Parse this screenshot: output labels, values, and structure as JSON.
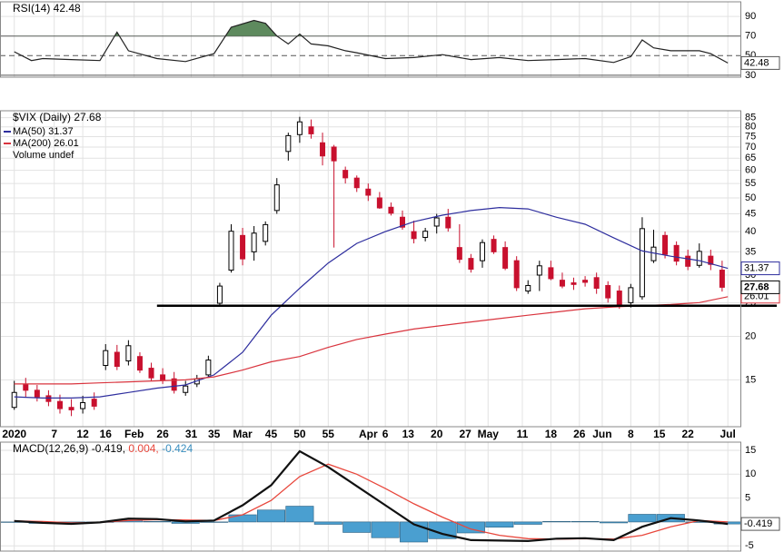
{
  "chart_data": [
    {
      "type": "line",
      "panel": "rsi",
      "title": "RSI(14) 42.48",
      "x": [
        0,
        3,
        5,
        10,
        15,
        18,
        20,
        25,
        30,
        35,
        38,
        42,
        44,
        46,
        48,
        50,
        52,
        55,
        58,
        60,
        65,
        70,
        75,
        80,
        85,
        90,
        95,
        100,
        105,
        108,
        110,
        112,
        115,
        120,
        122,
        125
      ],
      "series": [
        {
          "name": "RSI(14)",
          "color": "#222222",
          "values": [
            54,
            45,
            47,
            46,
            45,
            74,
            55,
            47,
            44,
            52,
            79,
            86,
            83,
            70,
            62,
            72,
            62,
            60,
            55,
            53,
            47,
            48,
            51,
            46,
            48,
            45,
            46,
            47,
            43,
            49,
            66,
            58,
            55,
            55,
            52,
            42.48
          ]
        }
      ],
      "ylim": [
        28,
        105
      ],
      "yticks": [
        30,
        50,
        70,
        90
      ],
      "last_value": 42.48,
      "fill_above": 70,
      "fill_color": "#5e8a5e"
    },
    {
      "type": "candlestick",
      "panel": "price",
      "title": "$VIX (Daily) 27.68",
      "legend_extra": "Volume undef",
      "x": [
        0,
        2,
        4,
        6,
        8,
        10,
        12,
        14,
        16,
        18,
        20,
        22,
        24,
        26,
        28,
        30,
        32,
        34,
        36,
        38,
        40,
        42,
        44,
        46,
        48,
        50,
        52,
        54,
        56,
        58,
        60,
        62,
        64,
        66,
        68,
        70,
        72,
        74,
        76,
        78,
        80,
        82,
        84,
        86,
        88,
        90,
        92,
        94,
        96,
        98,
        100,
        102,
        104,
        106,
        108,
        110,
        112,
        114,
        116,
        118,
        120,
        122,
        124
      ],
      "open": [
        12.5,
        14.5,
        14.0,
        13.5,
        13.0,
        12.5,
        12.4,
        13.2,
        16.5,
        18.0,
        17.0,
        17.5,
        16.2,
        15.5,
        15.1,
        13.8,
        14.6,
        15.5,
        24.9,
        31.0,
        39.0,
        35.0,
        37.5,
        46.0,
        68.0,
        76.0,
        80.0,
        72.0,
        70.0,
        60.0,
        57.0,
        53.0,
        50.0,
        47.0,
        44.0,
        40.0,
        38.5,
        41.5,
        44.0,
        36.0,
        33.5,
        33.0,
        38.0,
        36.0,
        33.0,
        27.0,
        30.0,
        31.5,
        29.0,
        28.5,
        29.0,
        29.5,
        28.0,
        27.0,
        25.0,
        26.0,
        33.0,
        39.0,
        36.5,
        34.0,
        32.0,
        34.0,
        31.0
      ],
      "high": [
        14.9,
        15.2,
        14.5,
        14.0,
        13.6,
        13.2,
        13.5,
        13.8,
        19.0,
        18.9,
        19.5,
        18.0,
        16.8,
        16.2,
        15.8,
        14.9,
        15.5,
        17.6,
        28.5,
        42.0,
        41.0,
        41.5,
        42.8,
        57.0,
        77.0,
        85.5,
        84.0,
        77.0,
        71.0,
        61.5,
        58.0,
        55.0,
        52.0,
        48.5,
        46.0,
        43.0,
        41.0,
        45.0,
        46.5,
        42.0,
        34.5,
        38.0,
        39.0,
        37.5,
        34.0,
        29.0,
        33.0,
        33.0,
        30.5,
        29.5,
        29.8,
        30.5,
        28.8,
        28.0,
        28.3,
        44.0,
        40.5,
        40.0,
        37.5,
        35.5,
        37.0,
        35.5,
        33.0
      ],
      "low": [
        12.3,
        13.4,
        13.0,
        12.6,
        12.0,
        11.8,
        12.0,
        12.3,
        16.0,
        16.0,
        16.5,
        15.7,
        14.9,
        14.6,
        13.7,
        13.5,
        14.3,
        15.2,
        24.5,
        30.5,
        32.0,
        33.0,
        36.5,
        45.0,
        64.0,
        72.0,
        74.0,
        62.0,
        36.0,
        55.0,
        52.0,
        49.0,
        46.5,
        44.5,
        40.5,
        37.0,
        37.5,
        39.5,
        40.0,
        32.5,
        30.5,
        31.5,
        34.5,
        31.0,
        27.0,
        26.5,
        27.0,
        29.0,
        27.5,
        27.2,
        27.8,
        26.5,
        25.0,
        24.0,
        24.2,
        25.5,
        32.5,
        33.5,
        32.0,
        31.0,
        31.5,
        31.0,
        26.9
      ],
      "close": [
        13.8,
        14.0,
        13.4,
        13.0,
        12.4,
        12.3,
        12.9,
        12.6,
        18.2,
        16.4,
        18.8,
        16.0,
        15.2,
        15.0,
        14.0,
        14.4,
        15.1,
        17.1,
        27.9,
        40.1,
        33.4,
        39.6,
        41.9,
        54.5,
        75.5,
        82.7,
        76.4,
        66.0,
        63.9,
        57.1,
        53.5,
        50.9,
        46.8,
        45.2,
        41.2,
        38.2,
        40.1,
        43.8,
        41.0,
        33.3,
        31.2,
        37.2,
        35.0,
        31.4,
        27.6,
        28.0,
        31.9,
        29.3,
        27.9,
        28.2,
        28.6,
        27.5,
        25.8,
        24.5,
        27.6,
        40.8,
        36.1,
        34.4,
        32.9,
        31.8,
        35.1,
        32.2,
        27.68
      ],
      "up_color": "#ffffff",
      "down_color": "#c8102e",
      "log_scale": true,
      "ylim": [
        11,
        89
      ],
      "yticks": [
        15,
        20,
        25,
        30,
        35,
        40,
        45,
        50,
        55,
        60,
        65,
        70,
        75,
        80,
        85
      ],
      "last_value": 27.68,
      "overlays": [
        {
          "name": "MA(50) 31.37",
          "color": "#2e2e9e",
          "last_value": 31.37,
          "x": [
            0,
            5,
            10,
            15,
            20,
            25,
            30,
            35,
            40,
            45,
            50,
            55,
            60,
            65,
            70,
            75,
            80,
            85,
            90,
            95,
            100,
            105,
            110,
            115,
            120,
            125
          ],
          "values": [
            13.4,
            13.3,
            13.3,
            13.4,
            13.8,
            14.2,
            14.5,
            15.5,
            18,
            23,
            27.5,
            32.5,
            37,
            40,
            42.7,
            44.6,
            46,
            46.9,
            46.5,
            44,
            42,
            38.4,
            35.2,
            34,
            33,
            31.37
          ]
        },
        {
          "name": "MA(200) 26.01",
          "color": "#d9343e",
          "last_value": 26.01,
          "x": [
            0,
            5,
            10,
            15,
            20,
            25,
            30,
            35,
            40,
            45,
            50,
            55,
            60,
            65,
            70,
            75,
            80,
            85,
            90,
            95,
            100,
            105,
            110,
            115,
            120,
            125
          ],
          "values": [
            14.6,
            14.6,
            14.6,
            14.7,
            14.8,
            14.9,
            15.0,
            15.3,
            16.0,
            16.9,
            17.5,
            18.6,
            19.6,
            20.3,
            21.0,
            21.5,
            22.0,
            22.5,
            23.0,
            23.5,
            24.0,
            24.3,
            24.5,
            24.7,
            25.0,
            26.01
          ]
        }
      ],
      "hline": {
        "value": 24.5,
        "x_start": 25
      },
      "grid": true,
      "xlim": [
        -2.5,
        127.2
      ],
      "xticks": [
        {
          "value": 0,
          "label": "2020"
        },
        7,
        12,
        16,
        {
          "value": 21,
          "label": "Feb"
        },
        26,
        31,
        35,
        {
          "value": 40,
          "label": "Mar"
        },
        45,
        50,
        55,
        {
          "value": 62,
          "label": "Apr"
        },
        {
          "value": 65,
          "label": "6"
        },
        {
          "value": 69,
          "label": "13"
        },
        {
          "value": 74,
          "label": "20"
        },
        {
          "value": 79,
          "label": "27"
        },
        {
          "value": 83,
          "label": "May"
        },
        {
          "value": 89,
          "label": "11"
        },
        {
          "value": 94,
          "label": "18"
        },
        {
          "value": 99,
          "label": "26"
        },
        {
          "value": 103,
          "label": "Jun"
        },
        {
          "value": 108,
          "label": "8"
        },
        {
          "value": 113,
          "label": "15"
        },
        {
          "value": 118,
          "label": "22"
        },
        {
          "value": 125,
          "label": "Jul"
        }
      ]
    },
    {
      "type": "macd",
      "panel": "macd",
      "legend": {
        "macd": "MACD(12,26,9) -0.419,",
        "signal": "0.004,",
        "histogram": "-0.424"
      },
      "x": [
        0,
        5,
        10,
        15,
        20,
        25,
        30,
        35,
        40,
        45,
        50,
        55,
        60,
        65,
        70,
        75,
        80,
        85,
        90,
        95,
        100,
        105,
        110,
        115,
        120,
        125
      ],
      "series": [
        {
          "name": "MACD",
          "color": "#111111",
          "values": [
            0.2,
            -0.2,
            -0.4,
            -0.1,
            0.7,
            0.6,
            0.1,
            0.3,
            3.5,
            7.7,
            14.8,
            11.5,
            7.5,
            3.5,
            -0.5,
            -2.5,
            -3.8,
            -3.9,
            -4.0,
            -3.5,
            -3.4,
            -3.8,
            -1.0,
            0.8,
            0.3,
            -0.419
          ]
        },
        {
          "name": "Signal",
          "color": "#e8473c",
          "values": [
            0.2,
            0.1,
            -0.2,
            -0.1,
            0.3,
            0.5,
            0.4,
            0.3,
            1.5,
            4.5,
            9.5,
            12.1,
            10,
            7,
            3.8,
            1.0,
            -1.5,
            -2.8,
            -3.5,
            -3.6,
            -3.5,
            -3.6,
            -2.8,
            -1.0,
            0.3,
            0.004
          ]
        },
        {
          "name": "Histogram",
          "color": "#4a9fd0",
          "values": [
            0,
            -0.3,
            -0.2,
            0,
            0.4,
            0.1,
            -0.3,
            0,
            1.5,
            2.5,
            3.3,
            -0.5,
            -2.2,
            -3.3,
            -4.2,
            -3.5,
            -2.3,
            -1.1,
            -0.5,
            0.1,
            0.1,
            -0.2,
            1.6,
            1.6,
            0,
            -0.424
          ]
        }
      ],
      "ylim": [
        -6.1,
        16.7
      ],
      "yticks": [
        -5,
        0,
        5,
        10,
        15
      ],
      "last_value": -0.419
    }
  ]
}
